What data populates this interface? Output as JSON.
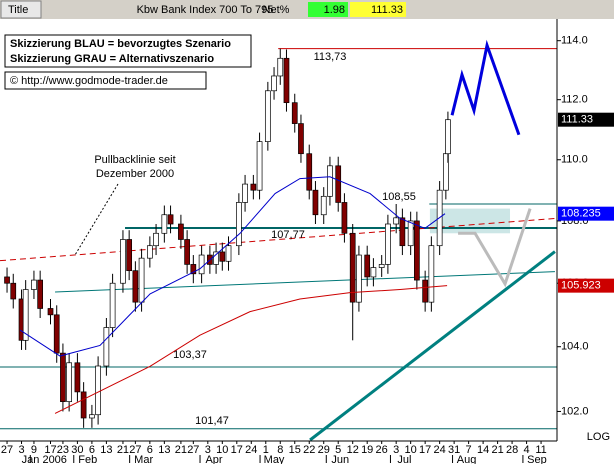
{
  "chart_data": {
    "type": "candlestick",
    "title": "Kbw Bank Index 700 To 795",
    "tab": "Title",
    "net_label": "Net%",
    "net_value": 1.98,
    "last": 111.33,
    "scale_label": "LOG",
    "log_scale": true,
    "up_color": "#ffffff",
    "down_color": "#800000",
    "xlim": [
      -3.4,
      265.7
    ],
    "ylim": [
      101.13,
      114.71
    ],
    "yticks": [
      {
        "value": 102,
        "label": "102.0"
      },
      {
        "value": 104,
        "label": "104.0"
      },
      {
        "value": 106,
        "label": "106.0"
      },
      {
        "value": 108,
        "label": "108.0"
      },
      {
        "value": 110,
        "label": "110.0"
      },
      {
        "value": 112,
        "label": "112.0"
      },
      {
        "value": 114,
        "label": "114.0"
      }
    ],
    "xticks": [
      {
        "value": 0,
        "label": "27"
      },
      {
        "value": 7,
        "label": "3"
      },
      {
        "value": 13,
        "label": "9"
      },
      {
        "value": 21,
        "label": "17"
      },
      {
        "value": 27,
        "label": "23"
      },
      {
        "value": 34,
        "label": "30"
      },
      {
        "value": 41,
        "label": "6"
      },
      {
        "value": 48,
        "label": "13"
      },
      {
        "value": 56,
        "label": "21"
      },
      {
        "value": 62,
        "label": "27"
      },
      {
        "value": 69,
        "label": "6"
      },
      {
        "value": 76,
        "label": "13"
      },
      {
        "value": 84,
        "label": "21"
      },
      {
        "value": 90,
        "label": "27"
      },
      {
        "value": 97,
        "label": "3"
      },
      {
        "value": 104,
        "label": "10"
      },
      {
        "value": 111,
        "label": "17"
      },
      {
        "value": 118,
        "label": "24"
      },
      {
        "value": 125,
        "label": "1"
      },
      {
        "value": 132,
        "label": "8"
      },
      {
        "value": 139,
        "label": "15"
      },
      {
        "value": 146,
        "label": "22"
      },
      {
        "value": 153,
        "label": "29"
      },
      {
        "value": 160,
        "label": "5"
      },
      {
        "value": 167,
        "label": "12"
      },
      {
        "value": 174,
        "label": "19"
      },
      {
        "value": 181,
        "label": "26"
      },
      {
        "value": 188,
        "label": "3"
      },
      {
        "value": 195,
        "label": "10"
      },
      {
        "value": 202,
        "label": "17"
      },
      {
        "value": 209,
        "label": "24"
      },
      {
        "value": 216,
        "label": "31"
      },
      {
        "value": 223,
        "label": "7"
      },
      {
        "value": 230,
        "label": "14"
      },
      {
        "value": 237,
        "label": "21"
      },
      {
        "value": 244,
        "label": "28"
      },
      {
        "value": 251,
        "label": "4"
      },
      {
        "value": 258,
        "label": "11"
      }
    ],
    "month_ticks": [
      {
        "value": 18,
        "label": "Jan 2006"
      },
      {
        "value": 39,
        "label": "Feb"
      },
      {
        "value": 66,
        "label": "Mar"
      },
      {
        "value": 100,
        "label": "Apr"
      },
      {
        "value": 129,
        "label": "May"
      },
      {
        "value": 161,
        "label": "Jun"
      },
      {
        "value": 192,
        "label": "Jul"
      },
      {
        "value": 222,
        "label": "Aug"
      },
      {
        "value": 256,
        "label": "Sep"
      }
    ],
    "x": [
      0,
      3,
      7,
      9,
      13,
      16,
      21,
      24,
      27,
      30,
      34,
      37,
      41,
      44,
      48,
      51,
      56,
      59,
      62,
      65,
      69,
      72,
      76,
      79,
      84,
      87,
      90,
      94,
      98,
      101,
      104,
      107,
      112,
      115,
      119,
      122,
      126,
      129,
      132,
      135,
      139,
      142,
      146,
      149,
      153,
      156,
      160,
      163,
      167,
      170,
      174,
      177,
      181,
      184,
      188,
      191,
      195,
      198,
      202,
      205,
      209,
      212,
      213
    ],
    "open": [
      106.2,
      106.0,
      105.5,
      104.2,
      105.8,
      106.1,
      105.2,
      105.0,
      103.8,
      102.3,
      103.5,
      102.6,
      101.8,
      101.9,
      103.4,
      104.6,
      106.0,
      107.4,
      106.4,
      105.4,
      106.8,
      107.2,
      107.6,
      108.2,
      107.9,
      107.4,
      106.6,
      106.3,
      106.9,
      106.6,
      107.0,
      106.7,
      107.2,
      108.6,
      109.2,
      109.0,
      110.6,
      112.3,
      112.8,
      113.4,
      111.9,
      111.2,
      110.2,
      109.0,
      108.2,
      108.8,
      109.8,
      108.6,
      107.6,
      105.4,
      106.9,
      106.2,
      106.5,
      106.6,
      107.9,
      108.1,
      107.2,
      108.0,
      106.1,
      105.4,
      107.2,
      109.0,
      110.2
    ],
    "high": [
      106.5,
      106.3,
      105.8,
      106.1,
      106.4,
      106.4,
      105.5,
      105.3,
      104.1,
      103.8,
      103.8,
      102.9,
      102.2,
      103.7,
      104.9,
      106.3,
      107.7,
      107.7,
      106.7,
      107.1,
      107.5,
      107.9,
      108.5,
      108.5,
      108.2,
      107.7,
      106.9,
      107.2,
      107.2,
      107.3,
      107.3,
      107.5,
      108.9,
      109.5,
      109.5,
      110.9,
      112.6,
      113.1,
      113.73,
      113.7,
      112.2,
      111.5,
      110.5,
      109.3,
      109.1,
      110.1,
      110.1,
      108.9,
      107.9,
      107.2,
      107.2,
      106.8,
      106.9,
      108.2,
      108.55,
      108.4,
      108.3,
      108.3,
      106.4,
      107.5,
      109.3,
      110.5,
      111.6
    ],
    "low": [
      105.7,
      105.2,
      103.9,
      103.9,
      105.5,
      104.9,
      104.7,
      103.5,
      102.0,
      102.0,
      102.3,
      101.5,
      101.5,
      101.6,
      103.1,
      104.3,
      105.7,
      106.1,
      105.1,
      105.1,
      106.5,
      106.9,
      107.3,
      107.6,
      107.1,
      106.3,
      106.0,
      106.0,
      106.3,
      106.3,
      106.4,
      106.4,
      106.9,
      108.3,
      108.7,
      108.7,
      110.3,
      112.0,
      112.5,
      111.6,
      110.9,
      109.9,
      108.7,
      107.9,
      107.9,
      108.5,
      108.3,
      107.3,
      104.2,
      105.1,
      105.9,
      105.9,
      106.2,
      106.3,
      107.6,
      106.9,
      106.9,
      105.8,
      105.1,
      105.1,
      106.9,
      108.7,
      109.9
    ],
    "close": [
      106.0,
      105.5,
      104.2,
      105.8,
      106.1,
      105.2,
      105.0,
      103.8,
      102.3,
      103.5,
      102.6,
      101.8,
      101.9,
      103.4,
      104.6,
      106.0,
      107.4,
      106.4,
      105.4,
      106.8,
      107.2,
      107.6,
      108.2,
      107.9,
      107.4,
      106.6,
      106.3,
      106.9,
      106.6,
      107.0,
      106.7,
      107.2,
      108.6,
      109.2,
      109.0,
      110.6,
      112.3,
      112.8,
      113.4,
      111.9,
      111.2,
      110.2,
      109.0,
      108.2,
      108.8,
      109.8,
      108.6,
      107.6,
      105.4,
      106.9,
      106.2,
      106.5,
      106.6,
      107.9,
      108.1,
      107.2,
      108.0,
      106.1,
      105.4,
      107.2,
      109.0,
      110.2,
      111.33
    ],
    "indicators": [
      {
        "color": "#0000cc",
        "x": [
          6.3,
          25.6,
          44.9,
          69.1,
          93.2,
          112.6,
          129.5,
          141.5,
          156,
          175.4,
          189.9,
          201.9,
          211.6
        ],
        "values": [
          104.52,
          103.71,
          104.04,
          105.66,
          106.46,
          107.6,
          108.89,
          109.38,
          109.44,
          108.89,
          108.08,
          107.76,
          108.235
        ]
      },
      {
        "color": "#cc0000",
        "x": [
          23.2,
          69.1,
          93.2,
          117.4,
          141.5,
          165.7,
          189.9,
          212.6
        ],
        "values": [
          101.94,
          103.39,
          104.36,
          105.1,
          105.5,
          105.7,
          105.8,
          105.923
        ]
      }
    ],
    "price_tags": [
      {
        "value": 111.33,
        "color": "#000000"
      },
      {
        "value": 108.235,
        "color": "#0000ff"
      },
      {
        "value": 105.923,
        "color": "#cc0000"
      }
    ],
    "levels": [
      {
        "value": 113.73,
        "x": 131,
        "color": "#cc0000",
        "width": 1
      },
      {
        "value": 108.55,
        "x": 204,
        "color": "#006666",
        "width": 1
      },
      {
        "value": 107.77,
        "x": 57,
        "color": "#006666",
        "width": 2
      },
      {
        "value": 103.37,
        "x": -3.4,
        "color": "#006666",
        "width": 1
      },
      {
        "value": 101.47,
        "x": -3.4,
        "color": "#006666",
        "width": 1
      }
    ],
    "trendlines": [
      {
        "color": "#cc0000",
        "width": 1,
        "dashed": true,
        "x": [
          -3.4,
          264.7
        ],
        "values": [
          106.72,
          108.08
        ]
      },
      {
        "color": "#007777",
        "width": 1,
        "dashed": false,
        "x": [
          23.2,
          264.7
        ],
        "values": [
          105.72,
          106.37
        ]
      },
      {
        "color": "#008080",
        "width": 3,
        "dashed": false,
        "x": [
          146.4,
          264.7
        ],
        "values": [
          101.13,
          107.01
        ]
      }
    ],
    "scenarios": [
      {
        "color": "#0000dd",
        "width": 3,
        "x": [
          215,
          219.8,
          225.6,
          231.9,
          247.3
        ],
        "values": [
          111.48,
          112.84,
          111.64,
          113.84,
          110.83
        ]
      },
      {
        "color": "#bbbbbb",
        "width": 3,
        "x": [
          217.9,
          226.1,
          240.6,
          252.7
        ],
        "values": [
          107.6,
          107.6,
          105.98,
          108.4
        ]
      }
    ],
    "zone": {
      "color": "#cce6e6",
      "x": [
        204.3,
        243
      ],
      "values": [
        107.6,
        108.4
      ]
    },
    "notes": [
      "Skizzierung BLAU = bevorzugtes Szenario",
      "Skizzierung GRAU = Alternativszenario"
    ],
    "copyright": "© http://www.godmode-trader.de",
    "pullback_note": [
      "Pullbacklinie seit",
      "Dezember 2000"
    ],
    "annotations": [
      "113,73",
      "108,55",
      "107,77",
      "103,37",
      "101,47"
    ]
  }
}
